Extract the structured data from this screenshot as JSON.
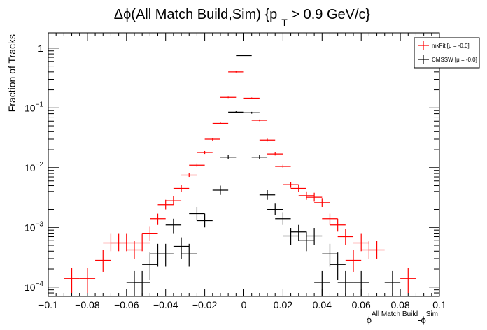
{
  "chart_data": {
    "type": "scatter",
    "title_main": "Δϕ(All Match Build,Sim) {p",
    "title_sub": "T",
    "title_end": " > 0.9 GeV/c}",
    "ylabel": "Fraction of Tracks",
    "xlabel_phi1": "ϕ",
    "xlabel_sup1": "All Match Build",
    "xlabel_mid": "-ϕ",
    "xlabel_sup2": "Sim",
    "xlim": [
      -0.1,
      0.1
    ],
    "ylim": [
      7e-05,
      1.8
    ],
    "y_scale": "log",
    "x_ticks": [
      "-0.1",
      "-0.08",
      "-0.06",
      "-0.04",
      "-0.02",
      "0",
      "0.02",
      "0.04",
      "0.06",
      "0.08",
      "0.1"
    ],
    "y_ticks": [
      {
        "value": 1,
        "base": "1",
        "exp": ""
      },
      {
        "value": 0.1,
        "base": "10",
        "exp": "−1"
      },
      {
        "value": 0.01,
        "base": "10",
        "exp": "−2"
      },
      {
        "value": 0.001,
        "base": "10",
        "exp": "−3"
      },
      {
        "value": 0.0001,
        "base": "10",
        "exp": "−4"
      }
    ],
    "bin_half_width": 0.004,
    "legend_position": "top-right",
    "series": [
      {
        "name": "mkFit  [μ = -0.0]",
        "color": "#ff0000",
        "points": [
          {
            "x": -0.088,
            "y": 0.00014,
            "lo": 8e-05,
            "hi": 0.00021
          },
          {
            "x": -0.08,
            "y": 0.00014,
            "lo": 8e-05,
            "hi": 0.00021
          },
          {
            "x": -0.072,
            "y": 0.00028,
            "lo": 0.00018,
            "hi": 0.00042
          },
          {
            "x": -0.068,
            "y": 0.00055,
            "lo": 0.0004,
            "hi": 0.0008
          },
          {
            "x": -0.064,
            "y": 0.00055,
            "lo": 0.0004,
            "hi": 0.0008
          },
          {
            "x": -0.06,
            "y": 0.00055,
            "lo": 0.0004,
            "hi": 0.0008
          },
          {
            "x": -0.056,
            "y": 0.00042,
            "lo": 0.0003,
            "hi": 0.0006
          },
          {
            "x": -0.052,
            "y": 0.00055,
            "lo": 0.0004,
            "hi": 0.0008
          },
          {
            "x": -0.048,
            "y": 0.0008,
            "lo": 0.0006,
            "hi": 0.00105
          },
          {
            "x": -0.044,
            "y": 0.0014,
            "lo": 0.0011,
            "hi": 0.0017
          },
          {
            "x": -0.04,
            "y": 0.0024,
            "lo": 0.002,
            "hi": 0.0029
          },
          {
            "x": -0.036,
            "y": 0.0028,
            "lo": 0.0024,
            "hi": 0.0033
          },
          {
            "x": -0.032,
            "y": 0.0045,
            "lo": 0.0039,
            "hi": 0.0052
          },
          {
            "x": -0.028,
            "y": 0.0075,
            "lo": 0.007,
            "hi": 0.0082
          },
          {
            "x": -0.024,
            "y": 0.011,
            "lo": 0.0103,
            "hi": 0.0118
          },
          {
            "x": -0.02,
            "y": 0.018,
            "lo": 0.017,
            "hi": 0.019
          },
          {
            "x": -0.016,
            "y": 0.03,
            "lo": 0.0285,
            "hi": 0.0315
          },
          {
            "x": -0.012,
            "y": 0.055,
            "lo": 0.053,
            "hi": 0.057
          },
          {
            "x": -0.008,
            "y": 0.15,
            "lo": 0.146,
            "hi": 0.154
          },
          {
            "x": -0.004,
            "y": 0.4,
            "lo": 0.39,
            "hi": 0.41
          },
          {
            "x": 0.004,
            "y": 0.145,
            "lo": 0.141,
            "hi": 0.149
          },
          {
            "x": 0.008,
            "y": 0.062,
            "lo": 0.06,
            "hi": 0.064
          },
          {
            "x": 0.012,
            "y": 0.029,
            "lo": 0.0275,
            "hi": 0.0305
          },
          {
            "x": 0.016,
            "y": 0.017,
            "lo": 0.016,
            "hi": 0.018
          },
          {
            "x": 0.02,
            "y": 0.0105,
            "lo": 0.0098,
            "hi": 0.0112
          },
          {
            "x": 0.024,
            "y": 0.0052,
            "lo": 0.0046,
            "hi": 0.0058
          },
          {
            "x": 0.028,
            "y": 0.0045,
            "lo": 0.0039,
            "hi": 0.0052
          },
          {
            "x": 0.032,
            "y": 0.0034,
            "lo": 0.0029,
            "hi": 0.004
          },
          {
            "x": 0.036,
            "y": 0.0032,
            "lo": 0.0027,
            "hi": 0.0038
          },
          {
            "x": 0.04,
            "y": 0.0026,
            "lo": 0.0022,
            "hi": 0.0031
          },
          {
            "x": 0.044,
            "y": 0.0014,
            "lo": 0.0011,
            "hi": 0.0017
          },
          {
            "x": 0.048,
            "y": 0.0011,
            "lo": 0.00085,
            "hi": 0.0014
          },
          {
            "x": 0.052,
            "y": 0.0007,
            "lo": 0.0005,
            "hi": 0.00095
          },
          {
            "x": 0.056,
            "y": 0.00028,
            "lo": 0.00018,
            "hi": 0.00042
          },
          {
            "x": 0.06,
            "y": 0.00055,
            "lo": 0.0004,
            "hi": 0.0008
          },
          {
            "x": 0.064,
            "y": 0.00042,
            "lo": 0.0003,
            "hi": 0.0006
          },
          {
            "x": 0.068,
            "y": 0.00042,
            "lo": 0.0003,
            "hi": 0.0006
          },
          {
            "x": 0.084,
            "y": 0.00014,
            "lo": 8e-05,
            "hi": 0.00021
          }
        ]
      },
      {
        "name": "CMSSW  [μ = -0.0]",
        "color": "#000000",
        "points": [
          {
            "x": -0.056,
            "y": 0.00012,
            "lo": 6e-05,
            "hi": 0.00019
          },
          {
            "x": -0.052,
            "y": 0.00012,
            "lo": 6e-05,
            "hi": 0.00019
          },
          {
            "x": -0.048,
            "y": 0.00024,
            "lo": 0.00013,
            "hi": 0.00038
          },
          {
            "x": -0.044,
            "y": 0.00036,
            "lo": 0.00022,
            "hi": 0.00053
          },
          {
            "x": -0.04,
            "y": 0.00036,
            "lo": 0.00022,
            "hi": 0.00053
          },
          {
            "x": -0.036,
            "y": 0.0011,
            "lo": 0.0008,
            "hi": 0.0014
          },
          {
            "x": -0.032,
            "y": 0.00048,
            "lo": 0.0003,
            "hi": 0.00068
          },
          {
            "x": -0.028,
            "y": 0.00036,
            "lo": 0.00022,
            "hi": 0.00053
          },
          {
            "x": -0.024,
            "y": 0.0017,
            "lo": 0.0013,
            "hi": 0.0022
          },
          {
            "x": -0.02,
            "y": 0.0013,
            "lo": 0.001,
            "hi": 0.0017
          },
          {
            "x": -0.012,
            "y": 0.0042,
            "lo": 0.0035,
            "hi": 0.005
          },
          {
            "x": -0.008,
            "y": 0.015,
            "lo": 0.0138,
            "hi": 0.0162
          },
          {
            "x": -0.004,
            "y": 0.085,
            "lo": 0.082,
            "hi": 0.088
          },
          {
            "x": 0.0,
            "y": 0.75,
            "lo": 0.74,
            "hi": 0.76
          },
          {
            "x": 0.004,
            "y": 0.083,
            "lo": 0.08,
            "hi": 0.086
          },
          {
            "x": 0.008,
            "y": 0.015,
            "lo": 0.0138,
            "hi": 0.0162
          },
          {
            "x": 0.012,
            "y": 0.0035,
            "lo": 0.0029,
            "hi": 0.0042
          },
          {
            "x": 0.016,
            "y": 0.002,
            "lo": 0.0016,
            "hi": 0.0025
          },
          {
            "x": 0.02,
            "y": 0.0014,
            "lo": 0.0011,
            "hi": 0.0018
          },
          {
            "x": 0.024,
            "y": 0.00072,
            "lo": 0.0005,
            "hi": 0.00098
          },
          {
            "x": 0.028,
            "y": 0.00084,
            "lo": 0.0006,
            "hi": 0.0011
          },
          {
            "x": 0.032,
            "y": 0.0006,
            "lo": 0.0004,
            "hi": 0.00085
          },
          {
            "x": 0.036,
            "y": 0.00072,
            "lo": 0.0005,
            "hi": 0.00098
          },
          {
            "x": 0.04,
            "y": 0.00012,
            "lo": 6e-05,
            "hi": 0.00019
          },
          {
            "x": 0.044,
            "y": 0.00036,
            "lo": 0.00022,
            "hi": 0.00053
          },
          {
            "x": 0.048,
            "y": 0.00024,
            "lo": 0.00013,
            "hi": 0.00038
          },
          {
            "x": 0.052,
            "y": 0.00012,
            "lo": 6e-05,
            "hi": 0.00019
          },
          {
            "x": 0.06,
            "y": 0.00012,
            "lo": 6e-05,
            "hi": 0.00019
          },
          {
            "x": 0.076,
            "y": 0.00012,
            "lo": 6e-05,
            "hi": 0.00019
          }
        ]
      }
    ]
  }
}
